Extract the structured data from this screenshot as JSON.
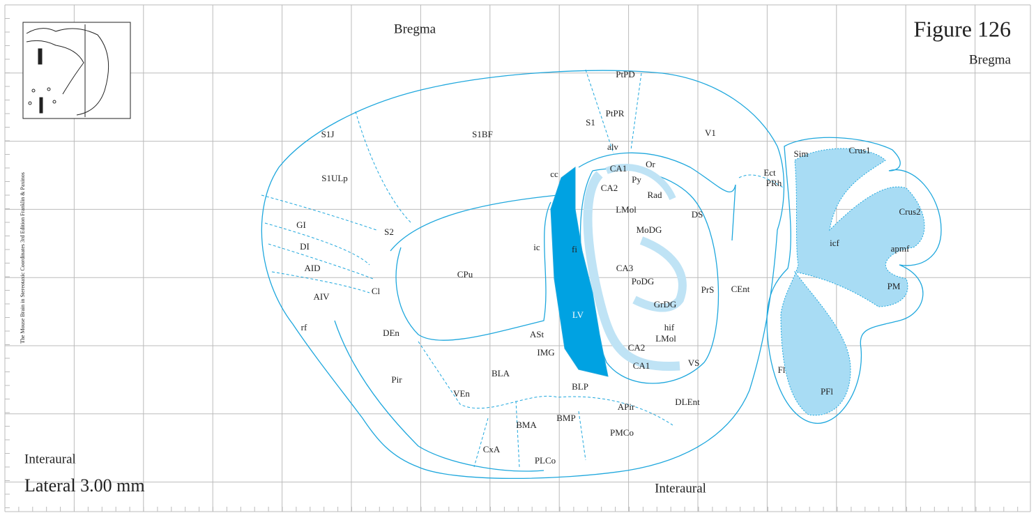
{
  "header": {
    "figure": "Figure 126",
    "bregma_top": "Bregma",
    "bregma_right": "Bregma"
  },
  "footer": {
    "interaural_left": "Interaural",
    "interaural_bottom": "Interaural",
    "lateral": "Lateral 3.00 mm"
  },
  "credit": "The Mouse Brain in Stereotaxic Coordinates 3rd Edition  Franklin & Paxinos",
  "labels": [
    "S1J",
    "S1BF",
    "S1",
    "PtPD",
    "PtPR",
    "V1",
    "alv",
    "S1ULp",
    "cc",
    "CA1",
    "Or",
    "Py",
    "CA2",
    "Rad",
    "LMol",
    "DS",
    "GI",
    "S2",
    "MoDG",
    "DI",
    "ic",
    "fi",
    "CPu",
    "CA3",
    "AID",
    "PoDG",
    "PrS",
    "CEnt",
    "Cl",
    "AIV",
    "GrDG",
    "LV",
    "hif",
    "rf",
    "DEn",
    "LMol",
    "ASt",
    "IMG",
    "CA2",
    "CA1",
    "VS",
    "BLA",
    "Pir",
    "BLP",
    "VEn",
    "APir",
    "DLEnt",
    "BMA",
    "BMP",
    "PMCo",
    "CxA",
    "PLCo",
    "Sim",
    "Crus1",
    "Ect",
    "PRh",
    "Crus2",
    "icf",
    "apmf",
    "PM",
    "Fl",
    "PFl"
  ]
}
